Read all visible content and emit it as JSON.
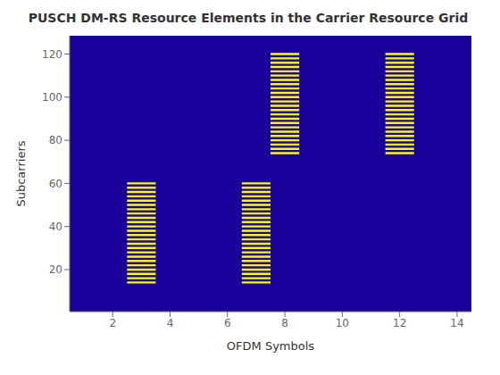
{
  "chart_data": {
    "type": "heatmap",
    "title": "PUSCH DM-RS Resource Elements in the Carrier Resource Grid",
    "xlabel": "OFDM Symbols",
    "ylabel": "Subcarriers",
    "xlim": [
      0.5,
      14.5
    ],
    "ylim": [
      0.5,
      128.5
    ],
    "xticks": [
      2,
      4,
      6,
      8,
      10,
      12,
      14
    ],
    "yticks": [
      20,
      40,
      60,
      80,
      100,
      120
    ],
    "color": "#1a0099",
    "series": [
      {
        "color": "#ffff00",
        "x": [
          3,
          3,
          3,
          3,
          3,
          3,
          3,
          3,
          3,
          3,
          3,
          3,
          3,
          3,
          3,
          3,
          3,
          3,
          3,
          3,
          3,
          3,
          3,
          3,
          7,
          7,
          7,
          7,
          7,
          7,
          7,
          7,
          7,
          7,
          7,
          7,
          7,
          7,
          7,
          7,
          7,
          7,
          7,
          7,
          7,
          7,
          7,
          7,
          8,
          8,
          8,
          8,
          8,
          8,
          8,
          8,
          8,
          8,
          8,
          8,
          8,
          8,
          8,
          8,
          8,
          8,
          8,
          8,
          8,
          8,
          8,
          8,
          12,
          12,
          12,
          12,
          12,
          12,
          12,
          12,
          12,
          12,
          12,
          12,
          12,
          12,
          12,
          12,
          12,
          12,
          12,
          12,
          12,
          12,
          12,
          12
        ],
        "y": [
          14,
          16,
          18,
          20,
          22,
          24,
          26,
          28,
          30,
          32,
          34,
          36,
          38,
          40,
          42,
          44,
          46,
          48,
          50,
          52,
          54,
          56,
          58,
          60,
          14,
          16,
          18,
          20,
          22,
          24,
          26,
          28,
          30,
          32,
          34,
          36,
          38,
          40,
          42,
          44,
          46,
          48,
          50,
          52,
          54,
          56,
          58,
          60,
          74,
          76,
          78,
          80,
          82,
          84,
          86,
          88,
          90,
          92,
          94,
          96,
          98,
          100,
          102,
          104,
          106,
          108,
          110,
          112,
          114,
          116,
          118,
          120,
          74,
          76,
          78,
          80,
          82,
          84,
          86,
          88,
          90,
          92,
          94,
          96,
          98,
          100,
          102,
          104,
          106,
          108,
          110,
          112,
          114,
          116,
          118,
          120
        ]
      }
    ]
  }
}
